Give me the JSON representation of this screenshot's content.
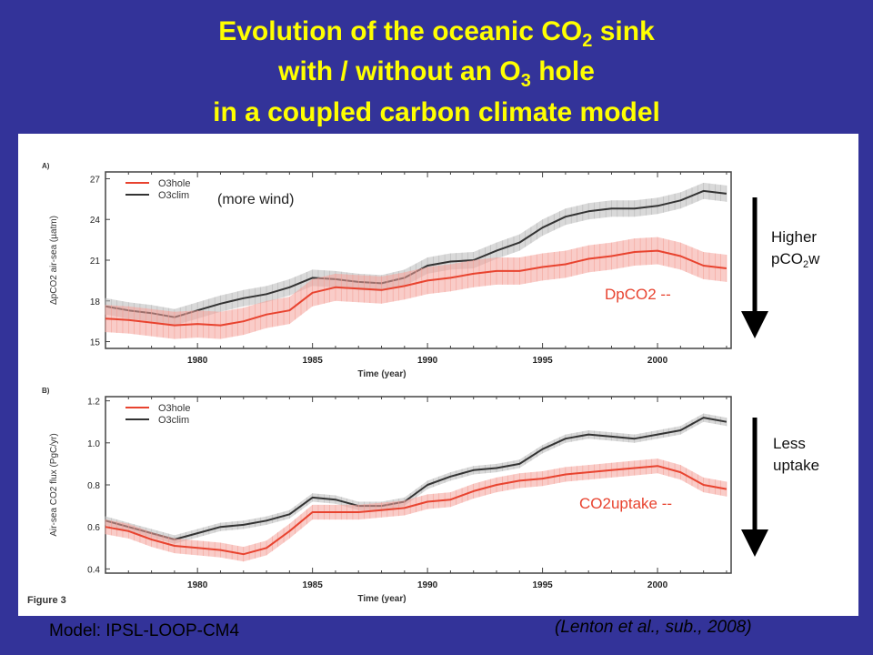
{
  "title": {
    "line1_pre": "Evolution of the oceanic CO",
    "line1_sub": "2",
    "line1_post": " sink",
    "line2_pre": "with / without an O",
    "line2_sub": "3",
    "line2_post": " hole",
    "line3": "in a coupled carbon climate model"
  },
  "figure_caption": "Figure 3",
  "footer": {
    "model": "Model: IPSL-LOOP-CM4",
    "citation": "(Lenton et al., sub., 2008)"
  },
  "colors": {
    "o3hole": "#e8432f",
    "o3clim": "#333333",
    "o3hole_band": "#f4a39a",
    "o3clim_band": "#b9b9b9",
    "title": "#ffff00",
    "background": "#333399",
    "annotation_red": "#e8432f"
  },
  "chart_data": [
    {
      "type": "line",
      "panel_label": "A)",
      "xlabel": "Time (year)",
      "ylabel": "ΔpCO2 air-sea (µatm)",
      "xlim": [
        1976,
        2003.2
      ],
      "ylim": [
        14.5,
        27.5
      ],
      "xticks": [
        1980,
        1985,
        1990,
        1995,
        2000
      ],
      "yticks": [
        15,
        18,
        21,
        24,
        27
      ],
      "legend": {
        "placement": "top-left",
        "entries": [
          "O3hole",
          "O3clim"
        ]
      },
      "annotations": {
        "top": "(more wind)",
        "series": "DpCO2 --",
        "arrow": [
          "Higher",
          "pCO",
          "2",
          "w"
        ]
      },
      "x": [
        1976,
        1977,
        1978,
        1979,
        1980,
        1981,
        1982,
        1983,
        1984,
        1985,
        1986,
        1987,
        1988,
        1989,
        1990,
        1991,
        1992,
        1993,
        1994,
        1995,
        1996,
        1997,
        1998,
        1999,
        2000,
        2001,
        2002,
        2003
      ],
      "series": [
        {
          "name": "O3hole",
          "values": [
            16.7,
            16.6,
            16.4,
            16.2,
            16.3,
            16.2,
            16.5,
            17.0,
            17.3,
            18.6,
            19.0,
            18.9,
            18.8,
            19.1,
            19.5,
            19.7,
            20.0,
            20.2,
            20.2,
            20.5,
            20.7,
            21.1,
            21.3,
            21.6,
            21.7,
            21.3,
            20.6,
            20.4
          ],
          "band": 1.0
        },
        {
          "name": "O3clim",
          "values": [
            17.6,
            17.3,
            17.1,
            16.8,
            17.3,
            17.8,
            18.2,
            18.5,
            19.0,
            19.7,
            19.6,
            19.4,
            19.3,
            19.7,
            20.6,
            20.9,
            21.0,
            21.7,
            22.3,
            23.4,
            24.2,
            24.6,
            24.8,
            24.8,
            25.0,
            25.4,
            26.1,
            25.9
          ],
          "band": 0.6
        }
      ]
    },
    {
      "type": "line",
      "panel_label": "B)",
      "xlabel": "Time (year)",
      "ylabel": "Air-sea CO2 flux (PgC/yr)",
      "xlim": [
        1976,
        2003.2
      ],
      "ylim": [
        0.38,
        1.22
      ],
      "xticks": [
        1980,
        1985,
        1990,
        1995,
        2000
      ],
      "yticks": [
        0.4,
        0.6,
        0.8,
        1.0,
        1.2
      ],
      "legend": {
        "placement": "top-left",
        "entries": [
          "O3hole",
          "O3clim"
        ]
      },
      "annotations": {
        "series": "CO2uptake --",
        "arrow": [
          "Less",
          "uptake"
        ]
      },
      "x": [
        1976,
        1977,
        1978,
        1979,
        1980,
        1981,
        1982,
        1983,
        1984,
        1985,
        1986,
        1987,
        1988,
        1989,
        1990,
        1991,
        1992,
        1993,
        1994,
        1995,
        1996,
        1997,
        1998,
        1999,
        2000,
        2001,
        2002,
        2003
      ],
      "series": [
        {
          "name": "O3hole",
          "values": [
            0.6,
            0.58,
            0.54,
            0.51,
            0.5,
            0.49,
            0.47,
            0.5,
            0.58,
            0.67,
            0.67,
            0.67,
            0.68,
            0.69,
            0.72,
            0.73,
            0.77,
            0.8,
            0.82,
            0.83,
            0.85,
            0.86,
            0.87,
            0.88,
            0.89,
            0.86,
            0.8,
            0.78
          ],
          "band": 0.035
        },
        {
          "name": "O3clim",
          "values": [
            0.63,
            0.6,
            0.57,
            0.54,
            0.57,
            0.6,
            0.61,
            0.63,
            0.66,
            0.74,
            0.73,
            0.7,
            0.7,
            0.72,
            0.8,
            0.84,
            0.87,
            0.88,
            0.9,
            0.97,
            1.02,
            1.04,
            1.03,
            1.02,
            1.04,
            1.06,
            1.12,
            1.1
          ],
          "band": 0.02
        }
      ]
    }
  ]
}
